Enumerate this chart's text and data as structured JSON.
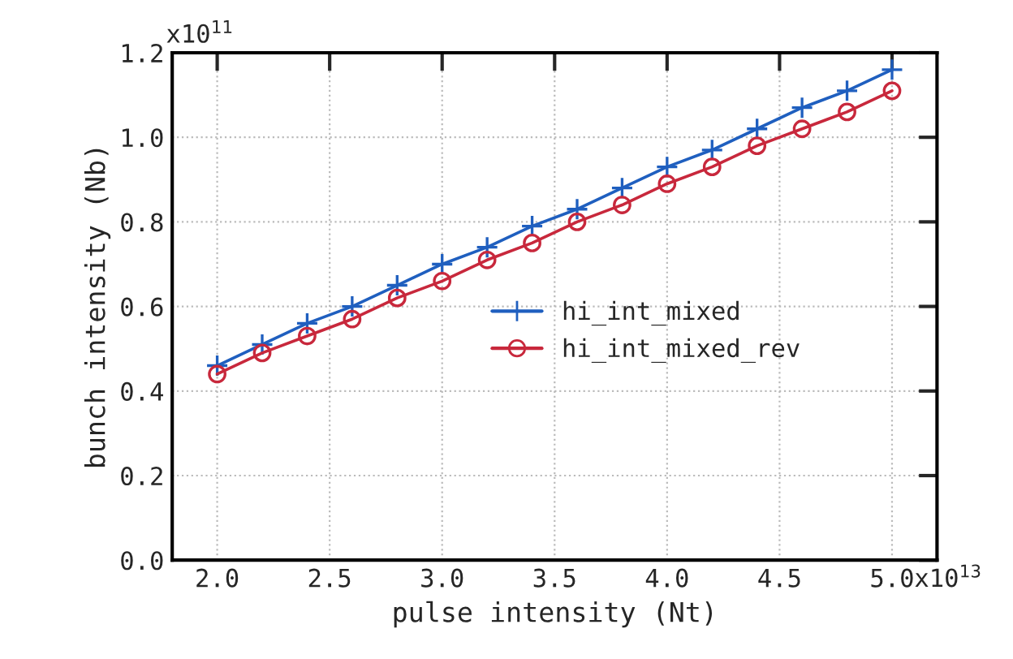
{
  "chart_data": {
    "type": "line",
    "xlabel": "pulse intensity (Nt)",
    "ylabel": "bunch intensity (Nb)",
    "x": [
      2.0,
      2.2,
      2.4,
      2.6,
      2.8,
      3.0,
      3.2,
      3.4,
      3.6,
      3.8,
      4.0,
      4.2,
      4.4,
      4.6,
      4.8,
      5.0
    ],
    "series": [
      {
        "name": "hi_int_mixed",
        "color": "#1f5fbf",
        "marker": "cross",
        "values": [
          0.46,
          0.51,
          0.56,
          0.6,
          0.65,
          0.7,
          0.74,
          0.79,
          0.83,
          0.88,
          0.93,
          0.97,
          1.02,
          1.07,
          1.11,
          1.16
        ]
      },
      {
        "name": "hi_int_mixed_rev",
        "color": "#c8283c",
        "marker": "circle",
        "values": [
          0.44,
          0.49,
          0.53,
          0.57,
          0.62,
          0.66,
          0.71,
          0.75,
          0.8,
          0.84,
          0.89,
          0.93,
          0.98,
          1.02,
          1.06,
          1.11
        ]
      }
    ],
    "xlim": [
      1.8,
      5.2
    ],
    "xticks": [
      {
        "value": 2,
        "label": "2.0"
      },
      2.5,
      {
        "value": 3,
        "label": "3.0"
      },
      3.5,
      {
        "value": 4,
        "label": "4.0"
      },
      4.5,
      {
        "value": 5,
        "label": "5.0"
      }
    ],
    "ylim": [
      0,
      1.2
    ],
    "yticks": [
      {
        "value": 0,
        "label": "0.0"
      },
      0.2,
      0.4,
      0.6,
      0.8,
      {
        "value": 1,
        "label": "1.0"
      },
      1.2
    ],
    "annotations": [
      "x10$^{13}$",
      "x10$^{11}$"
    ],
    "grid": true,
    "legend": "center",
    "line_style": "solid"
  }
}
